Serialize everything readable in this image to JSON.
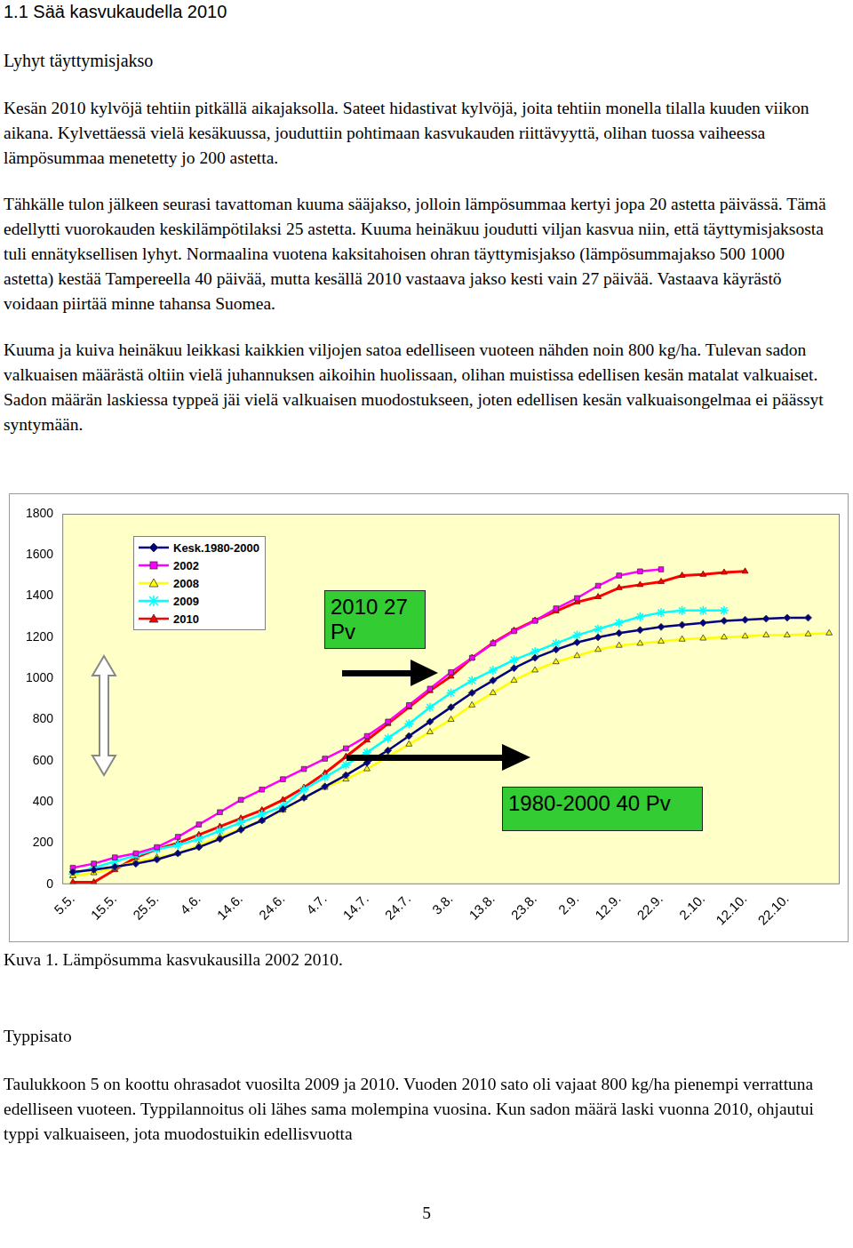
{
  "header": {
    "title": "1.1 Sää kasvukaudella 2010",
    "subtitle": "Lyhyt täyttymisjakso"
  },
  "paragraphs": [
    "Kesän 2010 kylvöjä tehtiin pitkällä aikajaksolla. Sateet hidastivat kylvöjä, joita tehtiin monella tilalla kuuden viikon aikana. Kylvettäessä vielä kesäkuussa, jouduttiin pohtimaan kasvukauden riittävyyttä, olihan tuossa vaiheessa lämpösummaa menetetty jo 200 astetta.",
    "Tähkälle tulon jälkeen seurasi tavattoman kuuma sääjakso, jolloin lämpösummaa kertyi jopa 20 astetta päivässä. Tämä edellytti vuorokauden keskilämpötilaksi 25 astetta. Kuuma heinäkuu joudutti viljan kasvua niin, että täyttymisjaksosta tuli ennätyksellisen lyhyt. Normaalina vuotena kaksitahoisen ohran täyttymisjakso (lämpösummajakso 500 1000 astetta) kestää Tampereella 40 päivää, mutta kesällä 2010 vastaava jakso kesti vain 27 päivää. Vastaava käyrästö voidaan piirtää minne tahansa Suomea.",
    "Kuuma ja kuiva heinäkuu leikkasi kaikkien viljojen satoa edelliseen vuoteen nähden noin 800 kg/ha. Tulevan sadon valkuaisen määrästä oltiin vielä juhannuksen aikoihin huolissaan, olihan muistissa edellisen kesän matalat valkuaiset. Sadon määrän laskiessa typpeä jäi vielä valkuaisen muodostukseen, joten edellisen kesän valkuaisongelmaa ei päässyt syntymään."
  ],
  "chart_data": {
    "type": "line",
    "categories": [
      "5.5.",
      null,
      "15.5.",
      null,
      "25.5.",
      null,
      "4.6.",
      null,
      "14.6.",
      null,
      "24.6.",
      null,
      "4.7.",
      null,
      "14.7.",
      null,
      "24.7.",
      null,
      "3.8.",
      null,
      "13.8.",
      null,
      "23.8.",
      null,
      "2.9.",
      null,
      "12.9.",
      null,
      "22.9.",
      null,
      "2.10.",
      null,
      "12.10.",
      null,
      "22.10.",
      null,
      null
    ],
    "series": [
      {
        "name": "Kesk.1980-2000",
        "color": "#000080",
        "marker": "diamond",
        "values": [
          60,
          70,
          85,
          100,
          120,
          150,
          180,
          220,
          265,
          310,
          365,
          420,
          475,
          530,
          590,
          650,
          720,
          790,
          860,
          930,
          990,
          1050,
          1100,
          1140,
          1175,
          1200,
          1220,
          1235,
          1250,
          1260,
          1270,
          1280,
          1285,
          1290,
          1295,
          1295,
          null
        ]
      },
      {
        "name": "2002",
        "color": "#ff00ff",
        "marker": "square",
        "values": [
          80,
          100,
          130,
          150,
          180,
          230,
          290,
          350,
          410,
          460,
          510,
          560,
          610,
          660,
          720,
          790,
          870,
          950,
          1030,
          1100,
          1170,
          1230,
          1280,
          1340,
          1390,
          1450,
          1500,
          1520,
          1530,
          null,
          null,
          null,
          null,
          null,
          null,
          null,
          null
        ]
      },
      {
        "name": "2008",
        "color": "#ffff00",
        "marker": "triangle",
        "values": [
          40,
          55,
          80,
          110,
          130,
          150,
          190,
          230,
          270,
          310,
          360,
          420,
          470,
          510,
          560,
          620,
          680,
          740,
          800,
          870,
          930,
          990,
          1040,
          1080,
          1110,
          1140,
          1160,
          1170,
          1180,
          1190,
          1195,
          1200,
          1205,
          1210,
          1210,
          1215,
          1220
        ]
      },
      {
        "name": "2009",
        "color": "#00ffff",
        "marker": "star",
        "values": [
          50,
          80,
          110,
          140,
          170,
          190,
          220,
          260,
          300,
          340,
          380,
          460,
          520,
          580,
          640,
          710,
          780,
          860,
          930,
          990,
          1040,
          1090,
          1130,
          1170,
          1210,
          1240,
          1270,
          1300,
          1320,
          1330,
          1330,
          1330,
          null,
          null,
          null,
          null,
          null
        ]
      },
      {
        "name": "2010",
        "color": "#ff0000",
        "marker": "triangle",
        "values": [
          10,
          10,
          70,
          130,
          170,
          200,
          240,
          280,
          320,
          360,
          410,
          470,
          540,
          620,
          700,
          780,
          860,
          940,
          1010,
          1100,
          1173,
          1233,
          1282,
          1327,
          1371,
          1396,
          1440,
          1455,
          1470,
          1500,
          1505,
          1515,
          1520,
          null,
          null,
          null,
          null
        ]
      }
    ],
    "ylim": [
      0,
      1800
    ],
    "yticks": [
      0,
      200,
      400,
      600,
      800,
      1000,
      1200,
      1400,
      1600,
      1800
    ],
    "grid": false,
    "legend": "upper left",
    "annotations": [
      "2010 27 Pv",
      "1980-2000 40 Pv"
    ]
  },
  "caption": "Kuva 1. Lämpösumma kasvukausilla 2002 2010.",
  "section": {
    "title": "Typpisato",
    "paragraphs": [
      "Taulukkoon 5 on koottu ohrasadot vuosilta 2009 ja 2010. Vuoden 2010 sato oli vajaat 800 kg/ha pienempi verrattuna edelliseen vuoteen. Typpilannoitus oli lähes sama molempina vuosina. Kun sadon määrä laski vuonna 2010, ohjautui typpi valkuaiseen, jota muodostuikin edellisvuotta"
    ]
  },
  "page_number": "5"
}
